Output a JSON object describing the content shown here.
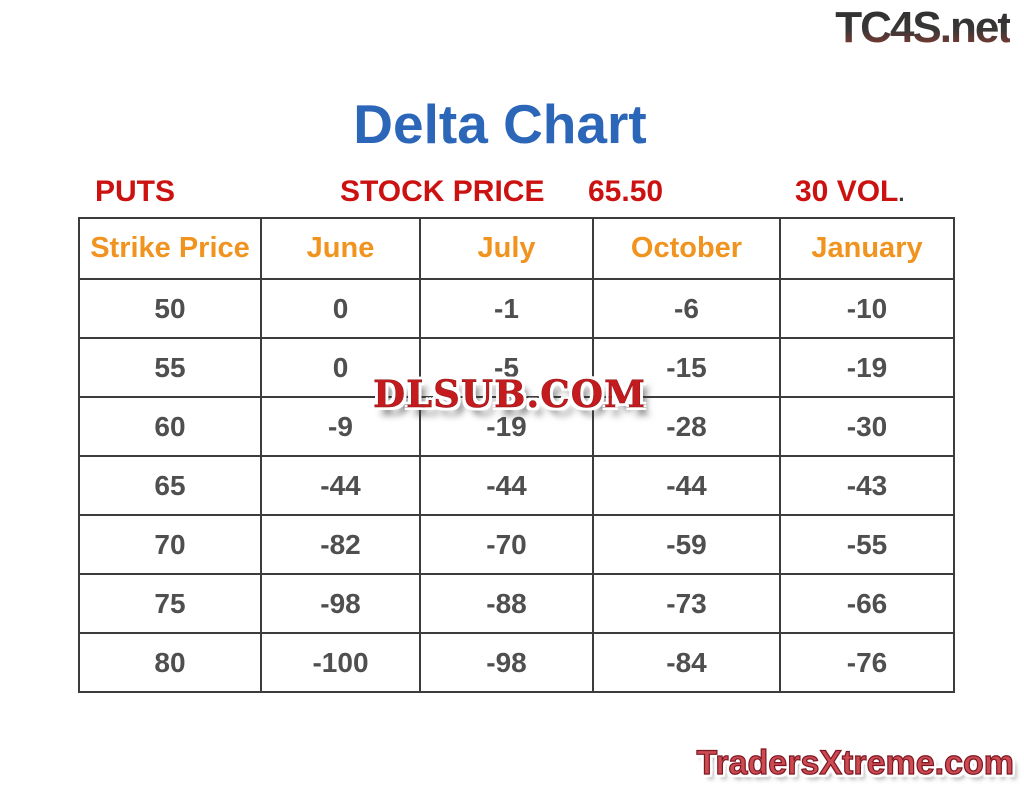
{
  "colors": {
    "title_blue": "#2b66b8",
    "subtitle_red": "#cc1111",
    "header_orange": "#f0931f",
    "cell_gray": "#4f4f4f",
    "border_gray": "#3c3c3c",
    "watermark_red": "#c41b1e",
    "bottom_logo_red": "#cc4a52"
  },
  "logos": {
    "top": "TC4S.net",
    "bottom": "TradersXtreme.com",
    "watermark": "DLSUB.COM"
  },
  "subheader": {
    "puts": "PUTS",
    "stock_price_label": "STOCK PRICE",
    "stock_price_value": "65.50",
    "vol": "30 VOL",
    "vol_period": "."
  },
  "chart_data": {
    "type": "table",
    "title": "Delta Chart",
    "annotations": [
      "PUTS",
      "STOCK PRICE 65.50",
      "30 VOL."
    ],
    "columns": [
      "Strike Price",
      "June",
      "July",
      "October",
      "January"
    ],
    "rows": [
      [
        50,
        0,
        -1,
        -6,
        -10
      ],
      [
        55,
        0,
        -5,
        -15,
        -19
      ],
      [
        60,
        -9,
        -19,
        -28,
        -30
      ],
      [
        65,
        -44,
        -44,
        -44,
        -43
      ],
      [
        70,
        -82,
        -70,
        -59,
        -55
      ],
      [
        75,
        -98,
        -88,
        -73,
        -66
      ],
      [
        80,
        -100,
        -98,
        -84,
        -76
      ]
    ]
  }
}
